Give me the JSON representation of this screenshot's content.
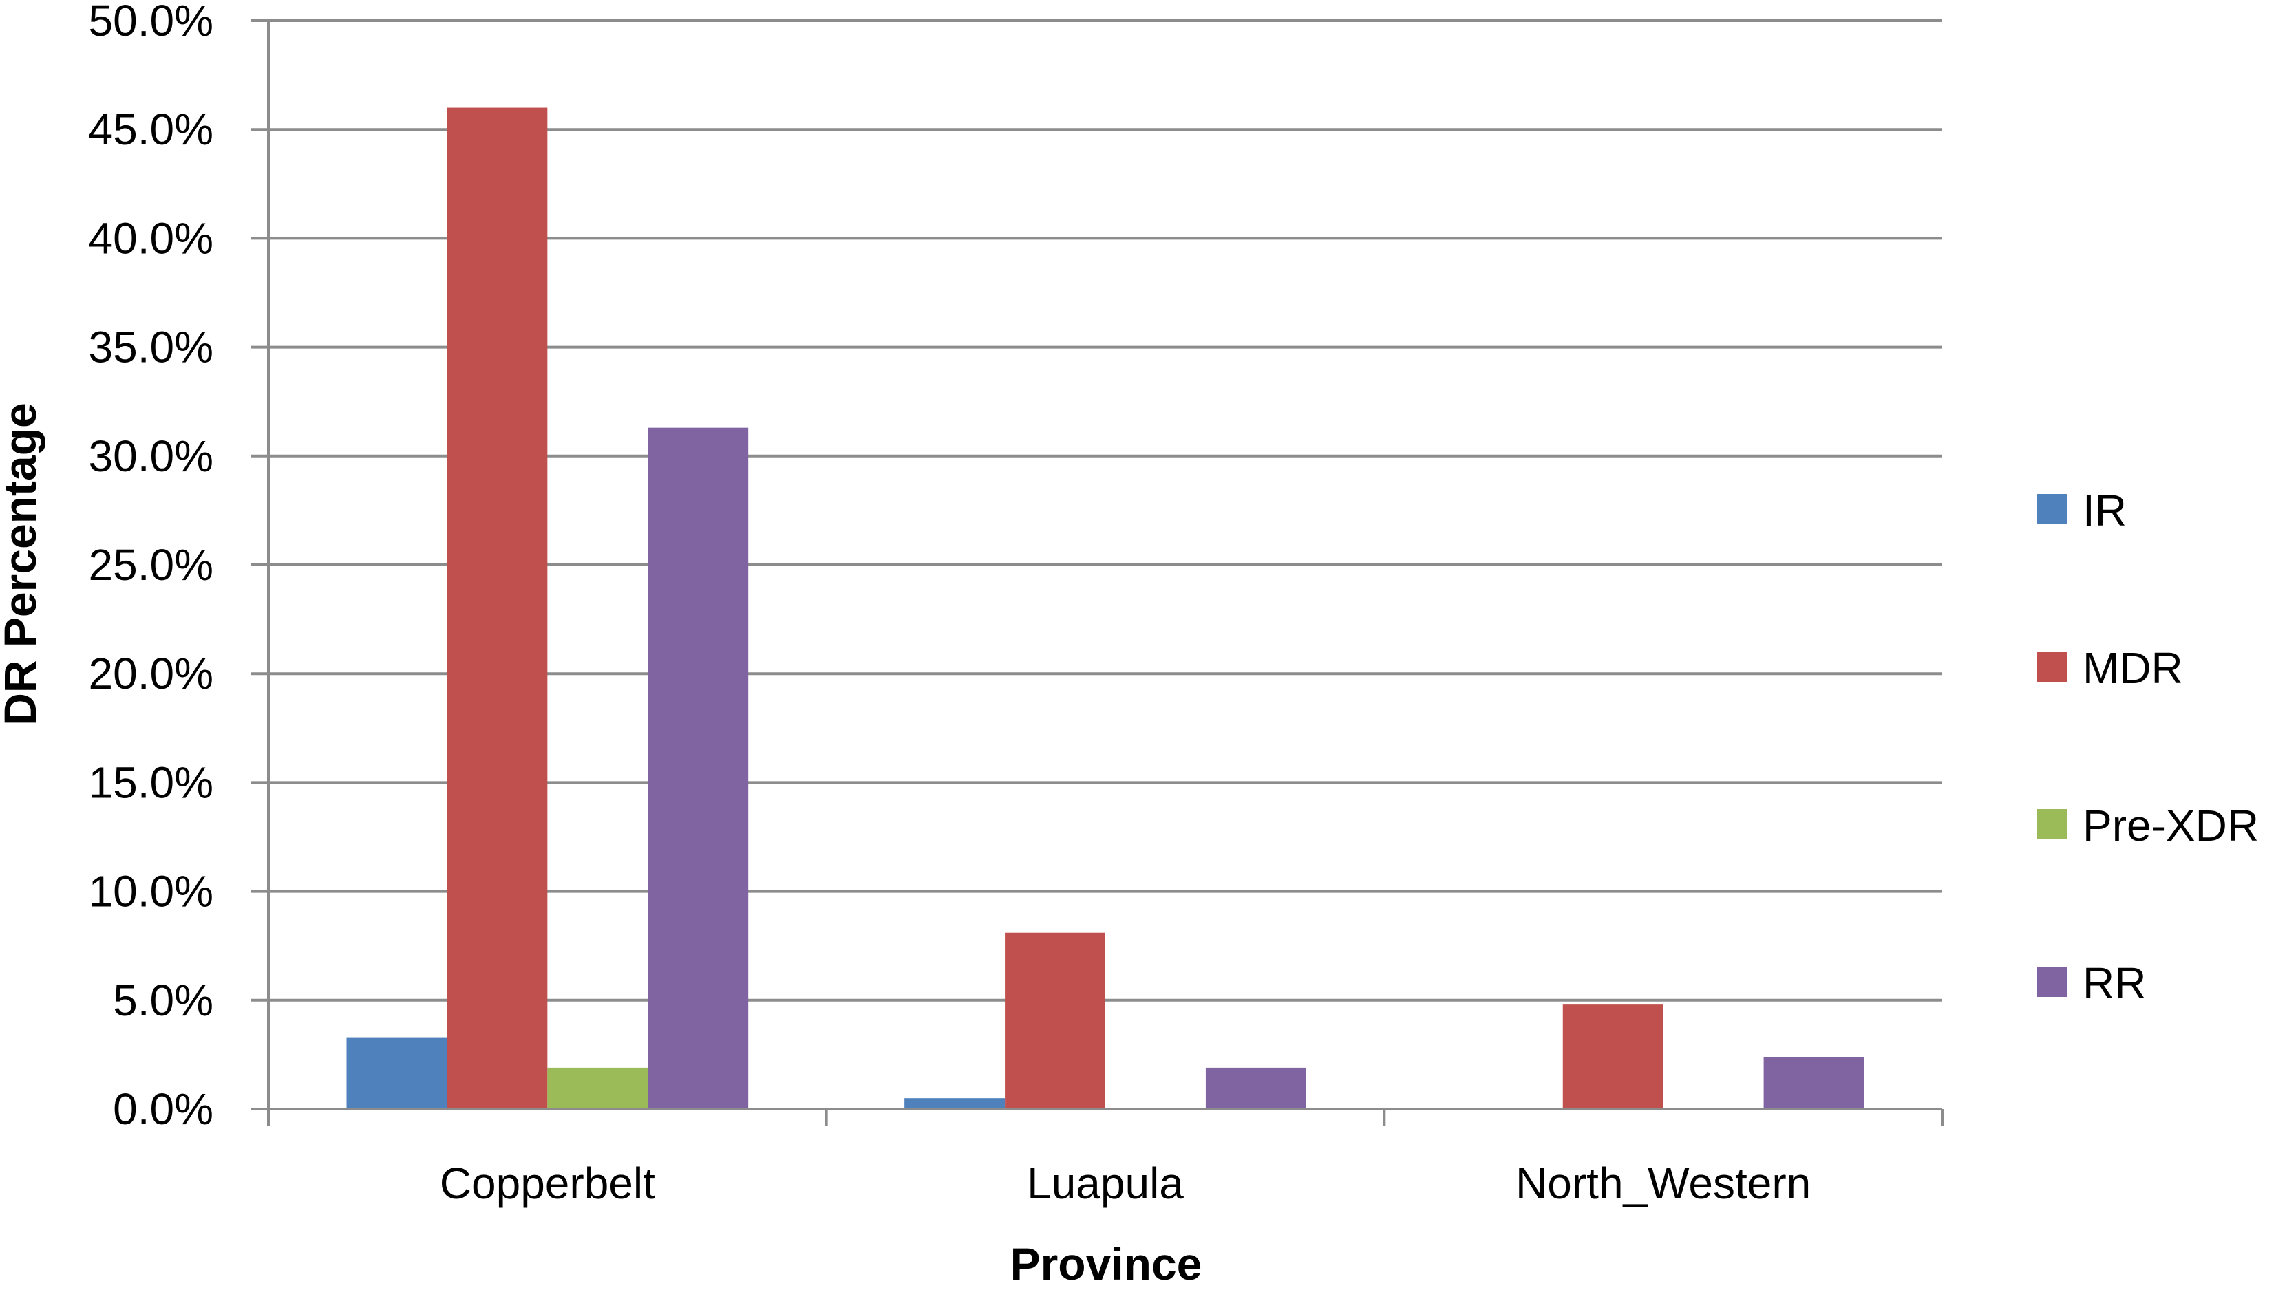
{
  "chart_data": {
    "type": "bar",
    "title": "",
    "xlabel": "Province",
    "ylabel": "DR Percentage",
    "categories": [
      "Copperbelt",
      "Luapula",
      "North_Western"
    ],
    "series": [
      {
        "name": "IR",
        "color": "#4F81BD",
        "values": [
          3.3,
          0.5,
          0.0
        ]
      },
      {
        "name": "MDR",
        "color": "#C0504D",
        "values": [
          46.0,
          8.1,
          4.8
        ]
      },
      {
        "name": "Pre-XDR",
        "color": "#9BBB59",
        "values": [
          1.9,
          0.0,
          0.0
        ]
      },
      {
        "name": "RR",
        "color": "#8064A2",
        "values": [
          31.3,
          1.9,
          2.4
        ]
      }
    ],
    "ylim": [
      0,
      50
    ],
    "ytick_labels": [
      "0.0%",
      "5.0%",
      "10.0%",
      "15.0%",
      "20.0%",
      "25.0%",
      "30.0%",
      "35.0%",
      "40.0%",
      "45.0%",
      "50.0%"
    ],
    "grid": true,
    "legend_position": "right"
  }
}
